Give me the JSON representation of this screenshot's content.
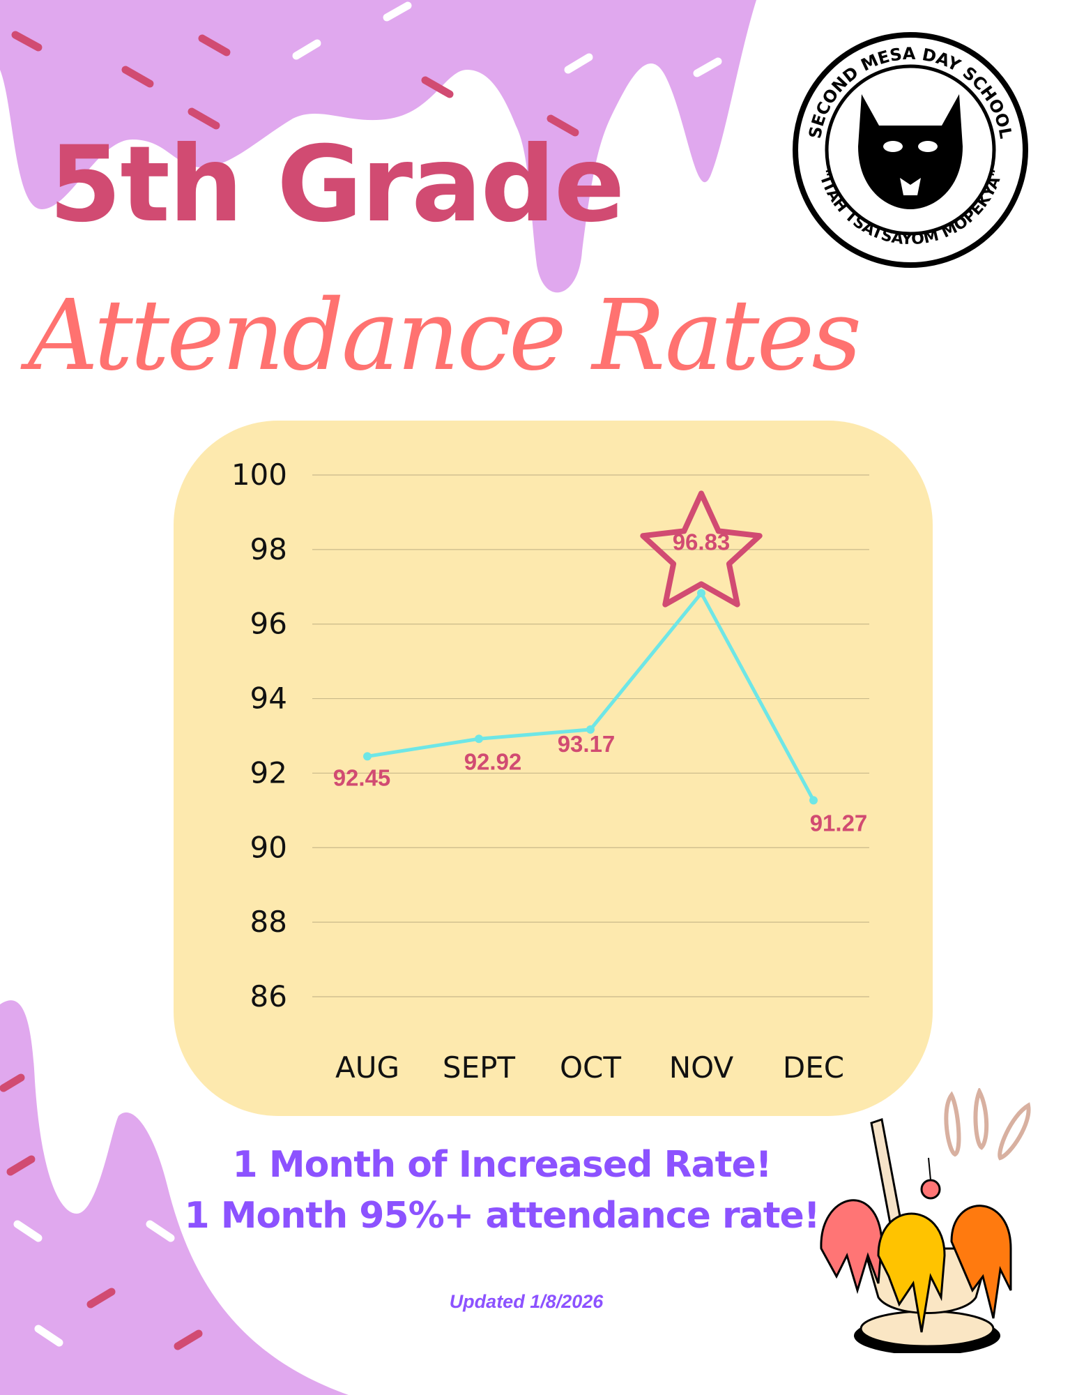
{
  "header": {
    "title_line1": "5th Grade",
    "title_line2": "Attendance Rates"
  },
  "logo": {
    "text_top": "SECOND MESA DAY SCHOOL",
    "text_bottom": "\"ITAH TSATSAYOM MOPEKYA\""
  },
  "chart_data": {
    "type": "line",
    "categories": [
      "AUG",
      "SEPT",
      "OCT",
      "NOV",
      "DEC"
    ],
    "values": [
      92.45,
      92.92,
      93.17,
      96.83,
      91.27
    ],
    "data_labels": [
      "92.45",
      "92.92",
      "93.17",
      "96.83",
      "91.27"
    ],
    "yticks": [
      "86",
      "88",
      "90",
      "92",
      "94",
      "96",
      "98",
      "100"
    ],
    "ylim": [
      86,
      100
    ],
    "grid": true,
    "highlight": "NOV",
    "colors": {
      "line": "#6ee6e6",
      "label": "#d14b72",
      "grid": "#c9b98a",
      "background": "#fde9ae"
    }
  },
  "footer": {
    "line1": "1 Month of  Increased Rate!",
    "line2": "1 Month 95%+ attendance rate!",
    "updated": "Updated 1/8/2026"
  }
}
